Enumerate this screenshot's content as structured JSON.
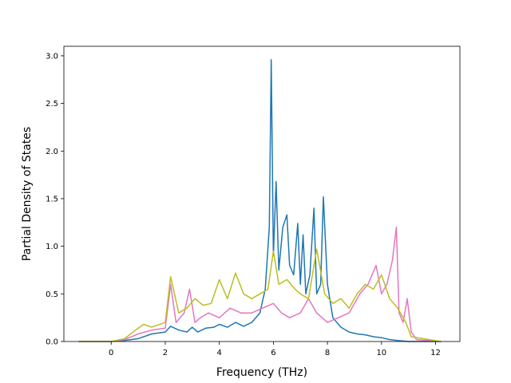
{
  "chart_data": {
    "type": "line",
    "title": "",
    "xlabel": "Frequency (THz)",
    "ylabel": "Partial Density of States",
    "xlim": [
      -1.75,
      12.9
    ],
    "ylim": [
      0.0,
      3.1
    ],
    "xticks": [
      0,
      2,
      4,
      6,
      8,
      10,
      12
    ],
    "xtick_labels": [
      "0",
      "2",
      "4",
      "6",
      "8",
      "10",
      "12"
    ],
    "yticks": [
      0.0,
      0.5,
      1.0,
      1.5,
      2.0,
      2.5,
      3.0
    ],
    "ytick_labels": [
      "0.0",
      "0.5",
      "1.0",
      "1.5",
      "2.0",
      "2.5",
      "3.0"
    ],
    "grid": false,
    "legend": "none",
    "colors": [
      "#1f77b4",
      "#e377c2",
      "#bcbd22"
    ],
    "series": [
      {
        "color": "#1f77b4",
        "x": [
          -1.2,
          -0.5,
          0.0,
          0.5,
          1.0,
          1.5,
          2.0,
          2.2,
          2.5,
          2.8,
          3.0,
          3.2,
          3.5,
          3.8,
          4.0,
          4.3,
          4.6,
          4.9,
          5.2,
          5.5,
          5.7,
          5.85,
          5.92,
          6.0,
          6.1,
          6.2,
          6.35,
          6.5,
          6.6,
          6.75,
          6.9,
          7.0,
          7.1,
          7.2,
          7.35,
          7.5,
          7.6,
          7.75,
          7.85,
          8.0,
          8.2,
          8.5,
          8.8,
          9.1,
          9.4,
          9.7,
          10.0,
          10.3,
          10.6,
          11.0,
          12.2
        ],
        "y": [
          0.0,
          0.0,
          0.0,
          0.01,
          0.03,
          0.08,
          0.1,
          0.16,
          0.12,
          0.1,
          0.15,
          0.1,
          0.14,
          0.15,
          0.18,
          0.15,
          0.2,
          0.16,
          0.2,
          0.3,
          0.55,
          1.2,
          2.96,
          0.9,
          1.68,
          0.75,
          1.2,
          1.33,
          0.8,
          0.7,
          1.24,
          0.6,
          1.12,
          0.5,
          0.7,
          1.4,
          0.5,
          0.6,
          1.52,
          0.6,
          0.25,
          0.15,
          0.1,
          0.08,
          0.07,
          0.05,
          0.04,
          0.02,
          0.01,
          0.0,
          0.0
        ]
      },
      {
        "color": "#e377c2",
        "x": [
          -1.2,
          0.0,
          0.5,
          1.0,
          1.5,
          2.0,
          2.2,
          2.4,
          2.7,
          2.9,
          3.1,
          3.3,
          3.6,
          4.0,
          4.4,
          4.8,
          5.2,
          5.6,
          6.0,
          6.3,
          6.6,
          7.0,
          7.3,
          7.6,
          8.0,
          8.4,
          8.8,
          9.2,
          9.5,
          9.8,
          10.0,
          10.2,
          10.4,
          10.55,
          10.65,
          10.8,
          10.95,
          11.1,
          11.3,
          12.2
        ],
        "y": [
          0.0,
          0.0,
          0.02,
          0.08,
          0.12,
          0.14,
          0.6,
          0.2,
          0.3,
          0.55,
          0.2,
          0.25,
          0.3,
          0.25,
          0.35,
          0.3,
          0.3,
          0.35,
          0.4,
          0.3,
          0.25,
          0.3,
          0.45,
          0.3,
          0.2,
          0.25,
          0.3,
          0.5,
          0.6,
          0.8,
          0.5,
          0.6,
          0.85,
          1.2,
          0.3,
          0.2,
          0.45,
          0.1,
          0.02,
          0.0
        ]
      },
      {
        "color": "#bcbd22",
        "x": [
          -1.2,
          0.0,
          0.5,
          0.9,
          1.2,
          1.5,
          2.0,
          2.2,
          2.5,
          2.8,
          3.1,
          3.4,
          3.7,
          4.0,
          4.3,
          4.6,
          4.9,
          5.2,
          5.5,
          5.8,
          6.0,
          6.2,
          6.5,
          6.8,
          7.0,
          7.3,
          7.6,
          7.9,
          8.2,
          8.5,
          8.8,
          9.1,
          9.4,
          9.7,
          10.0,
          10.3,
          10.6,
          10.9,
          11.1,
          12.2
        ],
        "y": [
          0.0,
          0.0,
          0.03,
          0.12,
          0.18,
          0.15,
          0.2,
          0.68,
          0.3,
          0.35,
          0.45,
          0.38,
          0.4,
          0.65,
          0.45,
          0.72,
          0.5,
          0.45,
          0.5,
          0.55,
          0.95,
          0.6,
          0.65,
          0.55,
          0.5,
          0.45,
          0.97,
          0.5,
          0.4,
          0.45,
          0.35,
          0.5,
          0.6,
          0.55,
          0.7,
          0.45,
          0.35,
          0.2,
          0.05,
          0.0
        ]
      }
    ]
  }
}
